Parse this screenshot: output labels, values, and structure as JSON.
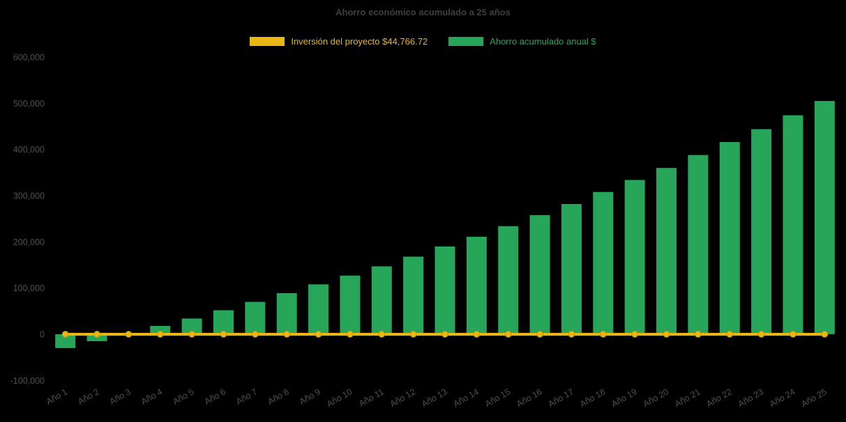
{
  "chart_data": {
    "type": "bar",
    "title": "Ahorro económico acumulado a 25 años",
    "categories": [
      "Año 1",
      "Año 2",
      "Año 3",
      "Año 4",
      "Año 5",
      "Año 6",
      "Año 7",
      "Año 8",
      "Año 9",
      "Año 10",
      "Año 11",
      "Año 12",
      "Año 13",
      "Año 14",
      "Año 15",
      "Año 16",
      "Año 17",
      "Año 18",
      "Año 19",
      "Año 20",
      "Año 21",
      "Año 22",
      "Año 23",
      "Año 24",
      "Año 25"
    ],
    "series": [
      {
        "name": "Inversión del proyecto $44,766.72",
        "type": "line",
        "color": "#e9b714",
        "marker": "circle",
        "values": [
          0,
          0,
          0,
          0,
          0,
          0,
          0,
          0,
          0,
          0,
          0,
          0,
          0,
          0,
          0,
          0,
          0,
          0,
          0,
          0,
          0,
          0,
          0,
          0,
          0
        ]
      },
      {
        "name": "Ahorro acumulado anual $",
        "type": "bar",
        "color": "#27a65a",
        "values": [
          -30000,
          -15000,
          2000,
          18000,
          34000,
          52000,
          70000,
          89000,
          108000,
          127000,
          147000,
          168000,
          190000,
          211000,
          234000,
          258000,
          282000,
          308000,
          334000,
          360000,
          388000,
          416000,
          444000,
          474000,
          505000
        ]
      }
    ],
    "ylim": [
      -100000,
      600000
    ],
    "yticks": [
      -100000,
      0,
      100000,
      200000,
      300000,
      400000,
      500000,
      600000
    ],
    "grid": false,
    "legend_position": "top",
    "background": "#000000",
    "title_color": "#3f3f3f",
    "tick_color": "#4f4f4f"
  }
}
